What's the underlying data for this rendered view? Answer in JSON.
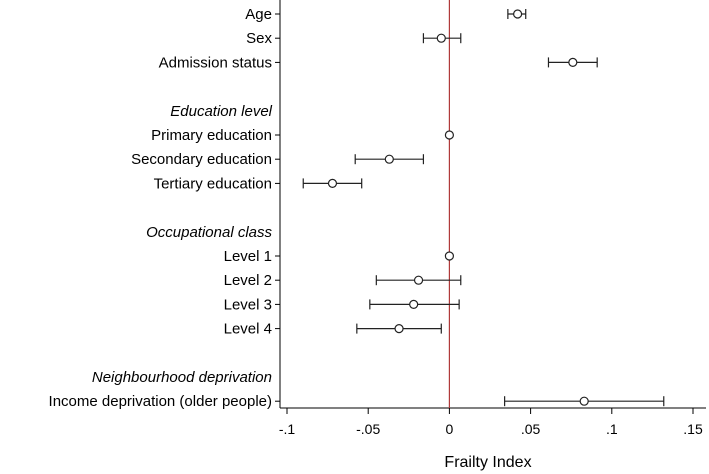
{
  "chart_data": {
    "type": "scatter",
    "subtype": "forest-plot",
    "title": "",
    "xlabel": "Frailty Index",
    "ylabel": "",
    "xlim": [
      -0.1,
      0.15
    ],
    "x_ticks": [
      {
        "value": -0.1,
        "label": "-.1"
      },
      {
        "value": -0.05,
        "label": "-.05"
      },
      {
        "value": 0,
        "label": "0"
      },
      {
        "value": 0.05,
        "label": ".05"
      },
      {
        "value": 0.1,
        "label": ".1"
      },
      {
        "value": 0.15,
        "label": ".15"
      }
    ],
    "reference_line": {
      "x": 0,
      "color": "#b03a3a"
    },
    "grid": false,
    "legend": "none",
    "marker": "hollow-circle",
    "rows": [
      {
        "kind": "item",
        "label": "Age",
        "estimate": 0.042,
        "ci": [
          0.036,
          0.047
        ]
      },
      {
        "kind": "item",
        "label": "Sex",
        "estimate": -0.005,
        "ci": [
          -0.016,
          0.007
        ]
      },
      {
        "kind": "item",
        "label": "Admission status",
        "estimate": 0.076,
        "ci": [
          0.061,
          0.091
        ]
      },
      {
        "kind": "spacer"
      },
      {
        "kind": "group",
        "label": "Education level"
      },
      {
        "kind": "item",
        "label": "Primary education",
        "estimate": 0.0,
        "ci": null
      },
      {
        "kind": "item",
        "label": "Secondary education",
        "estimate": -0.037,
        "ci": [
          -0.058,
          -0.016
        ]
      },
      {
        "kind": "item",
        "label": "Tertiary education",
        "estimate": -0.072,
        "ci": [
          -0.09,
          -0.054
        ]
      },
      {
        "kind": "spacer"
      },
      {
        "kind": "group",
        "label": "Occupational class"
      },
      {
        "kind": "item",
        "label": "Level 1",
        "estimate": 0.0,
        "ci": null
      },
      {
        "kind": "item",
        "label": "Level 2",
        "estimate": -0.019,
        "ci": [
          -0.045,
          0.007
        ]
      },
      {
        "kind": "item",
        "label": "Level 3",
        "estimate": -0.022,
        "ci": [
          -0.049,
          0.006
        ]
      },
      {
        "kind": "item",
        "label": "Level 4",
        "estimate": -0.031,
        "ci": [
          -0.057,
          -0.005
        ]
      },
      {
        "kind": "spacer"
      },
      {
        "kind": "group",
        "label": "Neighbourhood deprivation"
      },
      {
        "kind": "item",
        "label": "Income deprivation (older people)",
        "estimate": 0.083,
        "ci": [
          0.034,
          0.132
        ]
      }
    ]
  }
}
